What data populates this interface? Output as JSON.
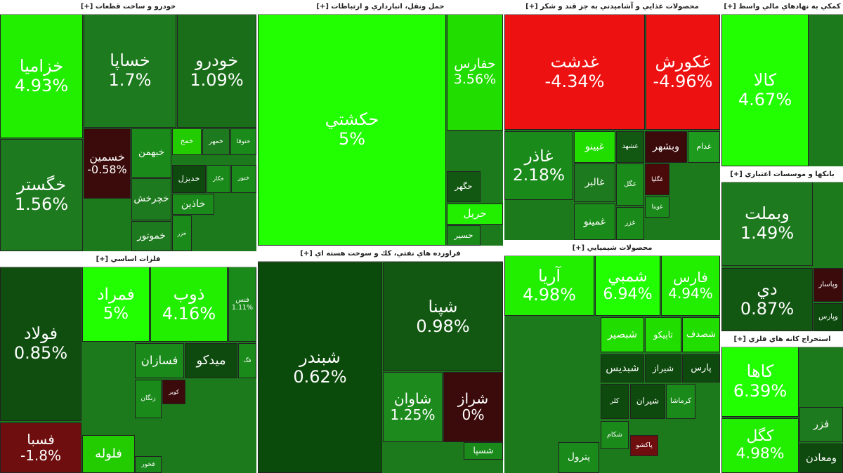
{
  "sectors": [
    {
      "title": "خودرو و ساخت قطعات [+]",
      "tiles": [
        {
          "name": "خزاميا",
          "change": "4.93%",
          "color": "#22ee00"
        },
        {
          "name": "خگستر",
          "change": "1.56%",
          "color": "#1e7a1e"
        },
        {
          "name": "خساپا",
          "change": "1.7%",
          "color": "#1e7a1e"
        },
        {
          "name": "خودرو",
          "change": "1.09%",
          "color": "#1a6e1a"
        },
        {
          "name": "خسمين",
          "change": "-0.58%",
          "color": "#3b0a0a"
        },
        {
          "name": "خبهمن",
          "color": "#1a8a1a"
        },
        {
          "name": "خمح",
          "color": "#22cc00"
        },
        {
          "name": "ختوقا",
          "color": "#1a8a1a"
        },
        {
          "name": "خمهر",
          "color": "#1e7a1e"
        },
        {
          "name": "خديزل",
          "color": "#0e4a0e"
        },
        {
          "name": "خكار",
          "color": "#1a8a1a"
        },
        {
          "name": "ختور",
          "color": "#1a8a1a"
        },
        {
          "name": "خچرخش",
          "color": "#1e7a1e"
        },
        {
          "name": "خاذين",
          "color": "#1a8a1a"
        },
        {
          "name": "خموتور",
          "color": "#1e7a1e"
        },
        {
          "name": "خزر",
          "color": "#1a8a1a"
        }
      ]
    },
    {
      "title": "حمل ونقل، انبارداري و ارتباطات [+]",
      "tiles": [
        {
          "name": "حكشتي",
          "change": "5%",
          "color": "#22ff00"
        },
        {
          "name": "حفارس",
          "change": "3.56%",
          "color": "#22dd00"
        },
        {
          "name": "حگهر",
          "color": "#125812"
        },
        {
          "name": "حريل",
          "color": "#22ee00"
        },
        {
          "name": "حسير",
          "color": "#1a8a1a"
        }
      ]
    },
    {
      "title": "محصولات غذايي و آشاميدني به جز قند و شكر [+]",
      "tiles": [
        {
          "name": "غدشت",
          "change": "-4.34%",
          "color": "#ee1111"
        },
        {
          "name": "غكورش",
          "change": "-4.96%",
          "color": "#ee1111"
        },
        {
          "name": "غاذر",
          "change": "2.18%",
          "color": "#1a8a1a"
        },
        {
          "name": "غبينو",
          "color": "#22dd00"
        },
        {
          "name": "غشهد",
          "color": "#125812"
        },
        {
          "name": "وبشهر",
          "color": "#3b0a0a"
        },
        {
          "name": "غدام",
          "color": "#1e9a1e"
        },
        {
          "name": "غالبر",
          "color": "#1e7a1e"
        },
        {
          "name": "غگل",
          "color": "#1a8a1a"
        },
        {
          "name": "غمينو",
          "color": "#1a8a1a"
        },
        {
          "name": "غزر",
          "color": "#1a8a1a"
        },
        {
          "name": "غگلپا",
          "color": "#4a0a0a"
        },
        {
          "name": "غويتا",
          "color": "#1a8a1a"
        }
      ]
    },
    {
      "title": "كمكي به نهادهاي مالي واسط [+]",
      "tiles": [
        {
          "name": "كالا",
          "change": "4.67%",
          "color": "#22ff00"
        }
      ]
    },
    {
      "title": "بانكها و موسسات اعتباري [+]",
      "tiles": [
        {
          "name": "وبملت",
          "change": "1.49%",
          "color": "#1e7a1e"
        },
        {
          "name": "دي",
          "change": "0.87%",
          "color": "#125812"
        },
        {
          "name": "وپاسار",
          "color": "#3b0a0a"
        },
        {
          "name": "وپارس",
          "color": "#0e4a0e"
        }
      ]
    },
    {
      "title": "استخراج كانه هاي فلزي [+]",
      "tiles": [
        {
          "name": "كاها",
          "change": "6.39%",
          "color": "#22ff00"
        },
        {
          "name": "كگل",
          "change": "4.98%",
          "color": "#22ee00"
        },
        {
          "name": "فزر",
          "color": "#1e7a1e"
        },
        {
          "name": "ومعادن",
          "color": "#0e4a0e"
        }
      ]
    },
    {
      "title": "فلزات اساسي [+]",
      "tiles": [
        {
          "name": "فولاد",
          "change": "0.85%",
          "color": "#104e10"
        },
        {
          "name": "فسبا",
          "change": "-1.8%",
          "color": "#6e0e0e"
        },
        {
          "name": "فمراد",
          "change": "5%",
          "color": "#22ff00"
        },
        {
          "name": "ذوب",
          "change": "4.16%",
          "color": "#22ee00"
        },
        {
          "name": "فنس",
          "change": "1.11%",
          "color": "#1a8a1a"
        },
        {
          "name": "فسازان",
          "color": "#1a8a1a"
        },
        {
          "name": "ميدكو",
          "color": "#0e4a0e"
        },
        {
          "name": "فگ",
          "color": "#1a8a1a"
        },
        {
          "name": "زنگان",
          "color": "#1a8a1a"
        },
        {
          "name": "كوير",
          "color": "#3b0a0a"
        },
        {
          "name": "فلوله",
          "color": "#22cc00"
        },
        {
          "name": "فخور",
          "color": "#1a8a1a"
        }
      ]
    },
    {
      "title": "فراورده هاي نفتي، كك و سوخت هسته اي [+]",
      "tiles": [
        {
          "name": "شبندر",
          "change": "0.62%",
          "color": "#0a4a0a"
        },
        {
          "name": "شپنا",
          "change": "0.98%",
          "color": "#125812"
        },
        {
          "name": "شاوان",
          "change": "1.25%",
          "color": "#1d8a1d"
        },
        {
          "name": "شراز",
          "change": "0%",
          "color": "#3b0a0a"
        },
        {
          "name": "شسپا",
          "color": "#1a8a1a"
        }
      ]
    },
    {
      "title": "محصولات شيميايي [+]",
      "tiles": [
        {
          "name": "آريا",
          "change": "4.98%",
          "color": "#22ee00"
        },
        {
          "name": "شمبي",
          "change": "6.94%",
          "color": "#22ff00"
        },
        {
          "name": "فارس",
          "change": "4.94%",
          "color": "#22ee00"
        },
        {
          "name": "شبصير",
          "color": "#22dd00"
        },
        {
          "name": "تاپيكو",
          "color": "#22dd00"
        },
        {
          "name": "شصدف",
          "color": "#22dd00"
        },
        {
          "name": "شبديس",
          "color": "#0e4a0e"
        },
        {
          "name": "شيراز",
          "color": "#0e4a0e"
        },
        {
          "name": "پارس",
          "color": "#0e4a0e"
        },
        {
          "name": "كلر",
          "color": "#0e4a0e"
        },
        {
          "name": "شيران",
          "color": "#0e4a0e"
        },
        {
          "name": "كرماشا",
          "color": "#1a8a1a"
        },
        {
          "name": "شكام",
          "color": "#1a8a1a"
        },
        {
          "name": "پاكشو",
          "color": "#6e0e0e"
        },
        {
          "name": "پترول",
          "color": "#1a8a1a"
        }
      ]
    }
  ]
}
